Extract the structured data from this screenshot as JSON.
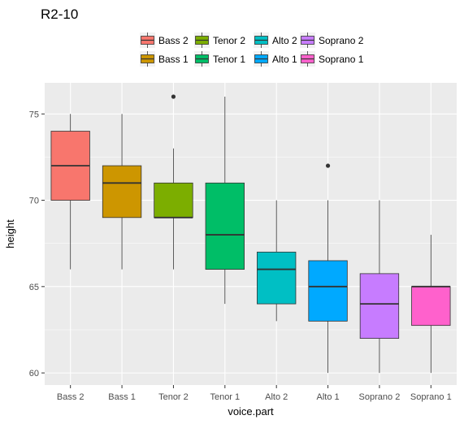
{
  "chart_data": {
    "type": "boxplot",
    "title": "R2-10",
    "xlabel": "voice.part",
    "ylabel": "height",
    "ylim": [
      59.3,
      76.8
    ],
    "yticks": [
      60,
      65,
      70,
      75
    ],
    "grid": true,
    "legend_position": "top",
    "categories": [
      "Bass 2",
      "Bass 1",
      "Tenor 2",
      "Tenor 1",
      "Alto 2",
      "Alto 1",
      "Soprano 2",
      "Soprano 1"
    ],
    "colors": [
      "#F8766D",
      "#CD9600",
      "#7CAE00",
      "#00BE67",
      "#00BFC4",
      "#00A9FF",
      "#C77CFF",
      "#FF61CC"
    ],
    "legend_rows": [
      [
        "Bass 2",
        "Tenor 2",
        "Alto 2",
        "Soprano 2"
      ],
      [
        "Bass 1",
        "Tenor 1",
        "Alto 1",
        "Soprano 1"
      ]
    ],
    "boxes": [
      {
        "name": "Bass 2",
        "whisker_low": 66,
        "q1": 70,
        "median": 72,
        "q3": 74,
        "whisker_high": 75,
        "outliers": []
      },
      {
        "name": "Bass 1",
        "whisker_low": 66,
        "q1": 69,
        "median": 71,
        "q3": 72,
        "whisker_high": 75,
        "outliers": []
      },
      {
        "name": "Tenor 2",
        "whisker_low": 66,
        "q1": 69,
        "median": 69,
        "q3": 71,
        "whisker_high": 73,
        "outliers": [
          76
        ]
      },
      {
        "name": "Tenor 1",
        "whisker_low": 64,
        "q1": 66,
        "median": 68,
        "q3": 71,
        "whisker_high": 76,
        "outliers": []
      },
      {
        "name": "Alto 2",
        "whisker_low": 63,
        "q1": 64,
        "median": 66,
        "q3": 67,
        "whisker_high": 70,
        "outliers": []
      },
      {
        "name": "Alto 1",
        "whisker_low": 60,
        "q1": 63,
        "median": 65,
        "q3": 66.5,
        "whisker_high": 70,
        "outliers": [
          72
        ]
      },
      {
        "name": "Soprano 2",
        "whisker_low": 60,
        "q1": 62,
        "median": 64,
        "q3": 65.75,
        "whisker_high": 70,
        "outliers": []
      },
      {
        "name": "Soprano 1",
        "whisker_low": 60,
        "q1": 62.75,
        "median": 65,
        "q3": 65,
        "whisker_high": 68,
        "outliers": []
      }
    ]
  }
}
